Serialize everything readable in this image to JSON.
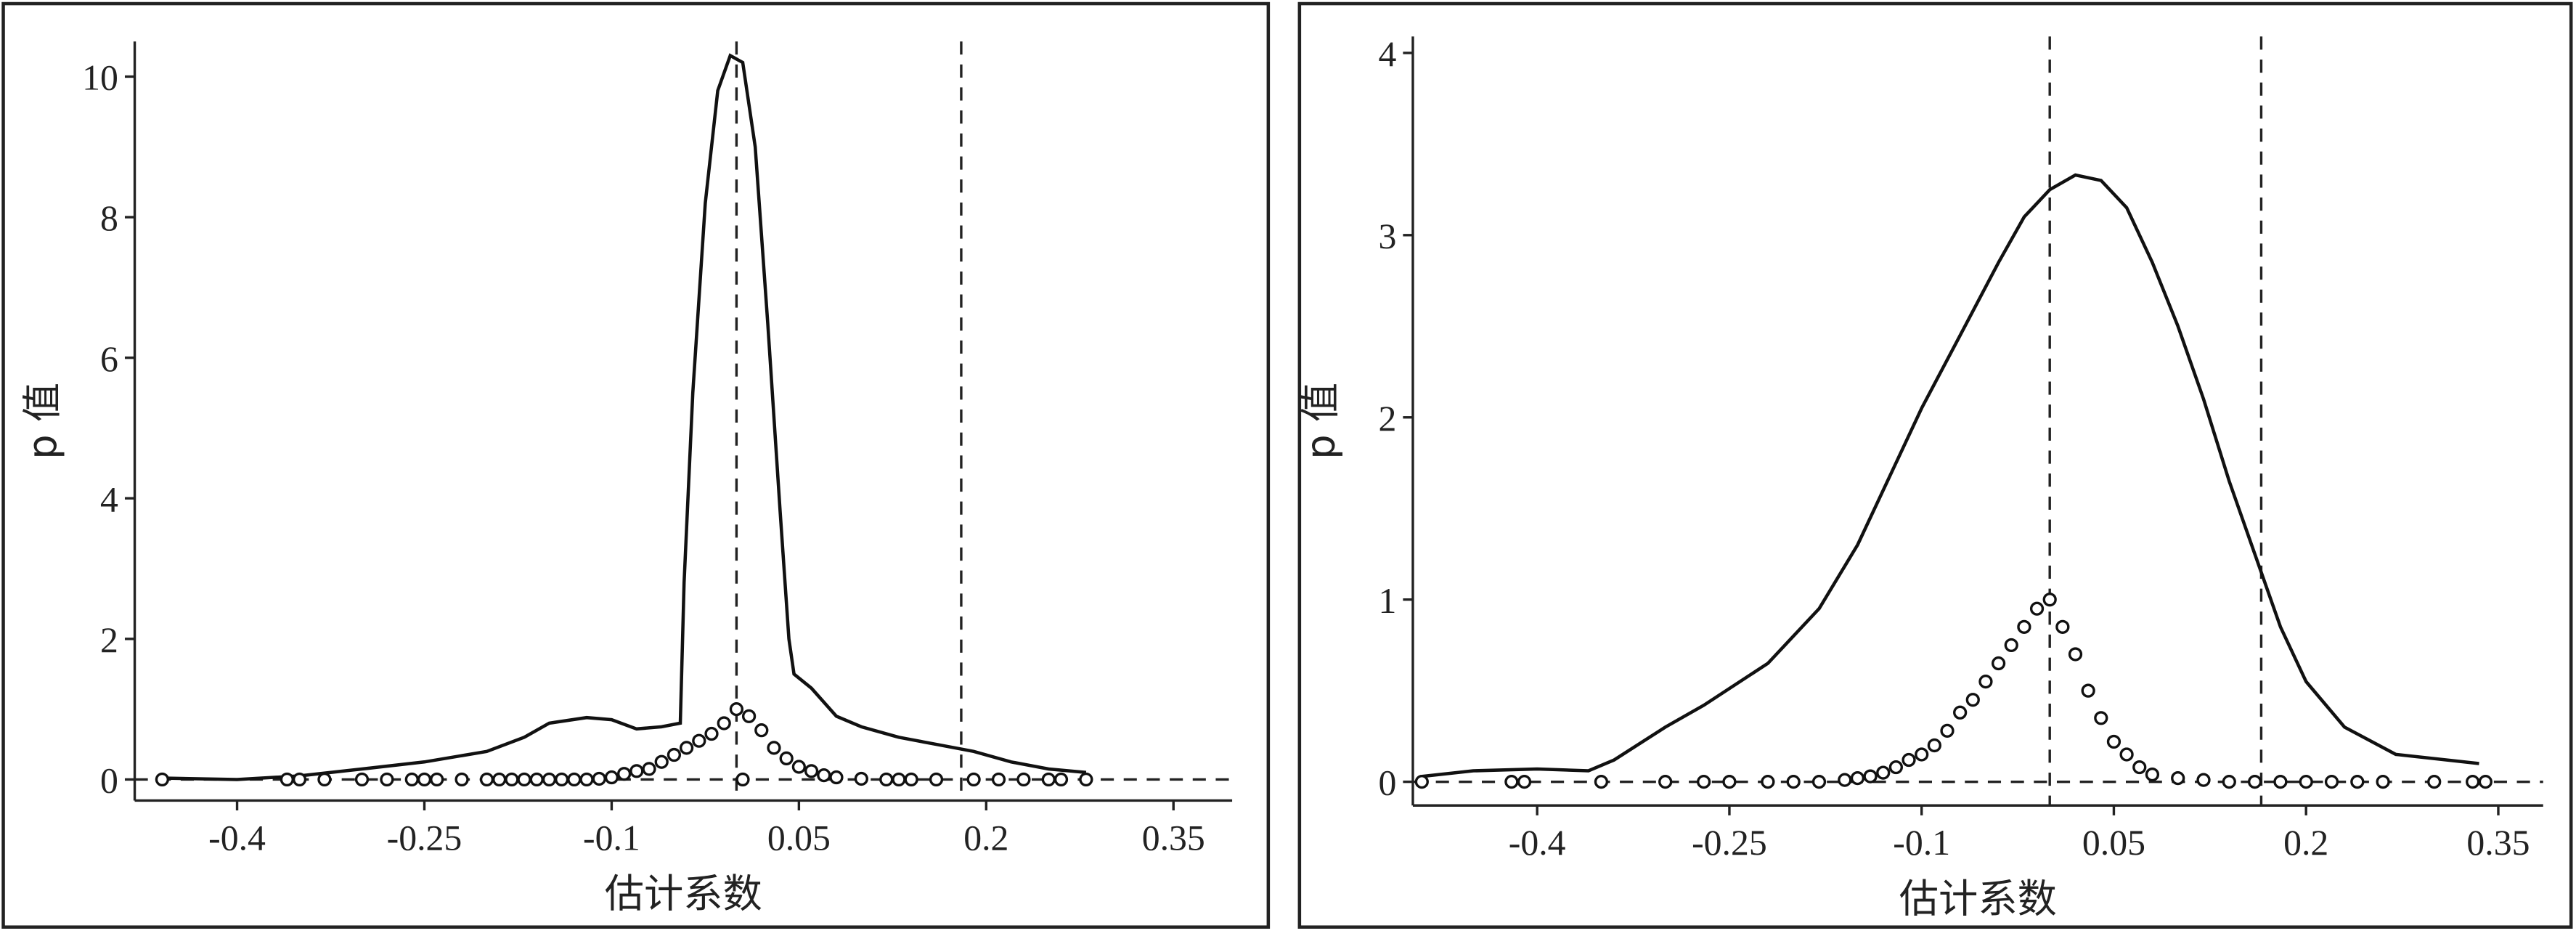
{
  "chart_data": [
    {
      "type": "line",
      "xlabel": "估计系数",
      "ylabel": "p 值",
      "xlim": [
        -0.482,
        0.397
      ],
      "ylim": [
        -0.3,
        10.5
      ],
      "xticks": [
        -0.4,
        -0.25,
        -0.1,
        0.05,
        0.2,
        0.35
      ],
      "yticks": [
        0,
        2,
        4,
        6,
        8,
        10
      ],
      "vlines": [
        0,
        0.18
      ],
      "hline": 0,
      "series": [
        {
          "kind": "line",
          "color": "#111111",
          "x": [
            -0.46,
            -0.4,
            -0.35,
            -0.3,
            -0.25,
            -0.2,
            -0.17,
            -0.15,
            -0.12,
            -0.1,
            -0.08,
            -0.06,
            -0.045,
            -0.042,
            -0.035,
            -0.025,
            -0.015,
            -0.005,
            0.005,
            0.015,
            0.025,
            0.035,
            0.042,
            0.046,
            0.06,
            0.08,
            0.1,
            0.13,
            0.16,
            0.19,
            0.22,
            0.25,
            0.28
          ],
          "values": [
            0.02,
            0.0,
            0.05,
            0.15,
            0.25,
            0.4,
            0.6,
            0.8,
            0.88,
            0.85,
            0.72,
            0.75,
            0.8,
            2.8,
            5.5,
            8.2,
            9.8,
            10.3,
            10.2,
            9.0,
            6.5,
            3.8,
            2.0,
            1.5,
            1.3,
            0.9,
            0.75,
            0.6,
            0.5,
            0.4,
            0.25,
            0.15,
            0.1
          ]
        },
        {
          "kind": "scatter",
          "color": "#111111",
          "x": [
            -0.46,
            -0.36,
            -0.35,
            -0.33,
            -0.3,
            -0.28,
            -0.26,
            -0.25,
            -0.24,
            -0.22,
            -0.2,
            -0.19,
            -0.18,
            -0.17,
            -0.16,
            -0.15,
            -0.14,
            -0.13,
            -0.12,
            -0.11,
            -0.1,
            -0.09,
            -0.08,
            -0.07,
            -0.06,
            -0.05,
            -0.04,
            -0.03,
            -0.02,
            -0.01,
            0,
            0.005,
            0.01,
            0.02,
            0.03,
            0.04,
            0.05,
            0.06,
            0.07,
            0.08,
            0.1,
            0.12,
            0.13,
            0.14,
            0.16,
            0.19,
            0.21,
            0.23,
            0.25,
            0.26,
            0.28
          ],
          "values": [
            0,
            0,
            0,
            0,
            0,
            0,
            0,
            0,
            0,
            0,
            0,
            0,
            0,
            0,
            0,
            0,
            0,
            0,
            0,
            0.01,
            0.03,
            0.08,
            0.12,
            0.15,
            0.25,
            0.35,
            0.45,
            0.55,
            0.65,
            0.8,
            1.0,
            0,
            0.9,
            0.7,
            0.45,
            0.3,
            0.18,
            0.12,
            0.06,
            0.03,
            0.01,
            0,
            0,
            0,
            0,
            0,
            0,
            0,
            0,
            0,
            0
          ]
        }
      ]
    },
    {
      "type": "line",
      "xlabel": "估计系数",
      "ylabel": "p 值",
      "xlim": [
        -0.497,
        0.385
      ],
      "ylim": [
        -0.13,
        4.09
      ],
      "xticks": [
        -0.4,
        -0.25,
        -0.1,
        0.05,
        0.2,
        0.35
      ],
      "yticks": [
        0,
        1,
        2,
        3,
        4
      ],
      "vlines": [
        0,
        0.165
      ],
      "hline": 0,
      "series": [
        {
          "kind": "line",
          "color": "#111111",
          "x": [
            -0.49,
            -0.45,
            -0.4,
            -0.36,
            -0.34,
            -0.3,
            -0.27,
            -0.22,
            -0.18,
            -0.15,
            -0.12,
            -0.1,
            -0.07,
            -0.04,
            -0.02,
            0,
            0.02,
            0.04,
            0.06,
            0.08,
            0.1,
            0.12,
            0.14,
            0.16,
            0.18,
            0.2,
            0.23,
            0.27,
            0.335
          ],
          "values": [
            0.03,
            0.06,
            0.07,
            0.06,
            0.12,
            0.3,
            0.42,
            0.65,
            0.95,
            1.3,
            1.75,
            2.05,
            2.45,
            2.85,
            3.1,
            3.25,
            3.33,
            3.3,
            3.15,
            2.85,
            2.5,
            2.1,
            1.65,
            1.25,
            0.85,
            0.55,
            0.3,
            0.15,
            0.1
          ]
        },
        {
          "kind": "scatter",
          "color": "#111111",
          "x": [
            -0.49,
            -0.42,
            -0.41,
            -0.35,
            -0.3,
            -0.27,
            -0.25,
            -0.22,
            -0.2,
            -0.18,
            -0.16,
            -0.15,
            -0.14,
            -0.13,
            -0.12,
            -0.11,
            -0.1,
            -0.09,
            -0.08,
            -0.07,
            -0.06,
            -0.05,
            -0.04,
            -0.03,
            -0.02,
            -0.01,
            0,
            0.01,
            0.02,
            0.03,
            0.04,
            0.05,
            0.06,
            0.07,
            0.08,
            0.1,
            0.12,
            0.14,
            0.16,
            0.18,
            0.2,
            0.22,
            0.24,
            0.26,
            0.3,
            0.33,
            0.34
          ],
          "values": [
            0,
            0,
            0,
            0,
            0,
            0,
            0,
            0,
            0,
            0,
            0.01,
            0.02,
            0.03,
            0.05,
            0.08,
            0.12,
            0.15,
            0.2,
            0.28,
            0.38,
            0.45,
            0.55,
            0.65,
            0.75,
            0.85,
            0.95,
            1.0,
            0.85,
            0.7,
            0.5,
            0.35,
            0.22,
            0.15,
            0.08,
            0.04,
            0.02,
            0.01,
            0,
            0,
            0,
            0,
            0,
            0,
            0,
            0,
            0,
            0
          ]
        }
      ]
    }
  ]
}
